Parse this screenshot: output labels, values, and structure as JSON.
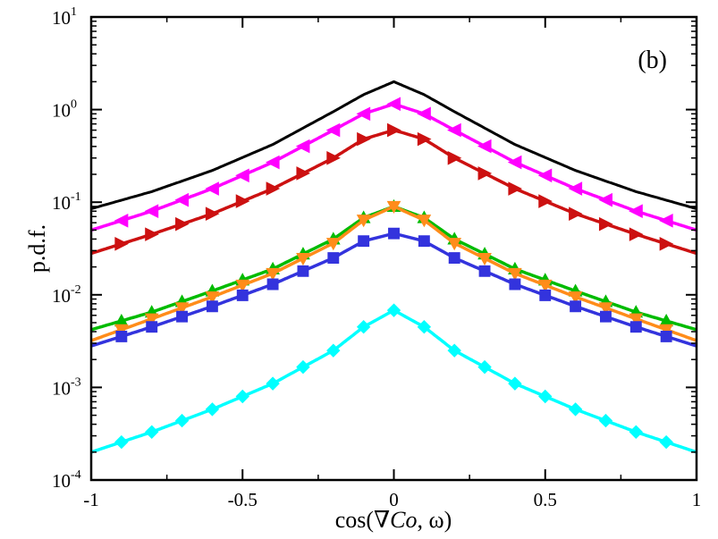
{
  "chart_data": {
    "type": "line",
    "panel_label": "(b)",
    "xlabel": "cos(∇Co, ω)",
    "xlabel_prefix": "cos(∇",
    "xlabel_italic": "Co",
    "xlabel_suffix": ", ω)",
    "ylabel": "p.d.f.",
    "xlim": [
      -1,
      1
    ],
    "ylim": [
      0.0001,
      10
    ],
    "yscale": "log",
    "x_ticks": [
      {
        "value": -1,
        "label": "-1"
      },
      {
        "value": -0.5,
        "label": "-0.5"
      },
      {
        "value": 0,
        "label": "0"
      },
      {
        "value": 0.5,
        "label": "0.5"
      },
      {
        "value": 1,
        "label": "1"
      }
    ],
    "y_ticks": [
      {
        "value": 0.0001,
        "base": "10",
        "exp": "-4"
      },
      {
        "value": 0.001,
        "base": "10",
        "exp": "-3"
      },
      {
        "value": 0.01,
        "base": "10",
        "exp": "-2"
      },
      {
        "value": 0.1,
        "base": "10",
        "exp": "-1"
      },
      {
        "value": 1,
        "base": "10",
        "exp": "0"
      },
      {
        "value": 10,
        "base": "10",
        "exp": "1"
      }
    ],
    "series": [
      {
        "name": "black",
        "color": "#000000",
        "marker": "none",
        "x": [
          -1,
          -0.8,
          -0.6,
          -0.4,
          -0.2,
          -0.1,
          0,
          0.1,
          0.2,
          0.4,
          0.6,
          0.8,
          1
        ],
        "y": [
          0.085,
          0.13,
          0.22,
          0.42,
          0.95,
          1.45,
          2.0,
          1.45,
          0.95,
          0.42,
          0.22,
          0.13,
          0.085
        ]
      },
      {
        "name": "magenta",
        "color": "#ff00ff",
        "marker": "triangle-left",
        "x": [
          -1,
          -0.8,
          -0.6,
          -0.4,
          -0.2,
          -0.1,
          0,
          0.1,
          0.2,
          0.4,
          0.6,
          0.8,
          1
        ],
        "y": [
          0.05,
          0.08,
          0.14,
          0.27,
          0.6,
          0.9,
          1.15,
          0.9,
          0.6,
          0.27,
          0.14,
          0.08,
          0.05
        ]
      },
      {
        "name": "red",
        "color": "#cc1111",
        "marker": "triangle-right",
        "x": [
          -1,
          -0.8,
          -0.6,
          -0.4,
          -0.2,
          -0.1,
          0,
          0.1,
          0.2,
          0.4,
          0.6,
          0.8,
          1
        ],
        "y": [
          0.028,
          0.045,
          0.075,
          0.14,
          0.3,
          0.48,
          0.6,
          0.48,
          0.3,
          0.14,
          0.075,
          0.045,
          0.028
        ]
      },
      {
        "name": "green",
        "color": "#00bb00",
        "marker": "triangle-up",
        "x": [
          -1,
          -0.8,
          -0.6,
          -0.4,
          -0.2,
          -0.1,
          0,
          0.1,
          0.2,
          0.4,
          0.6,
          0.8,
          1
        ],
        "y": [
          0.0042,
          0.0065,
          0.011,
          0.019,
          0.04,
          0.068,
          0.09,
          0.068,
          0.04,
          0.019,
          0.011,
          0.0065,
          0.0042
        ]
      },
      {
        "name": "orange",
        "color": "#ff8c1a",
        "marker": "triangle-down",
        "x": [
          -1,
          -0.8,
          -0.6,
          -0.4,
          -0.2,
          -0.1,
          0,
          0.1,
          0.2,
          0.4,
          0.6,
          0.8,
          1
        ],
        "y": [
          0.0032,
          0.0055,
          0.0095,
          0.017,
          0.036,
          0.064,
          0.09,
          0.064,
          0.036,
          0.017,
          0.0095,
          0.0055,
          0.0032
        ]
      },
      {
        "name": "blue",
        "color": "#3333dd",
        "marker": "square",
        "x": [
          -1,
          -0.8,
          -0.6,
          -0.4,
          -0.2,
          -0.1,
          0,
          0.1,
          0.2,
          0.4,
          0.6,
          0.8,
          1
        ],
        "y": [
          0.0028,
          0.0045,
          0.0075,
          0.013,
          0.025,
          0.038,
          0.046,
          0.038,
          0.025,
          0.013,
          0.0075,
          0.0045,
          0.0028
        ]
      },
      {
        "name": "cyan",
        "color": "#00ffff",
        "marker": "diamond",
        "x": [
          -1,
          -0.8,
          -0.6,
          -0.4,
          -0.2,
          -0.1,
          0,
          0.1,
          0.2,
          0.4,
          0.6,
          0.8,
          1
        ],
        "y": [
          0.0002,
          0.00033,
          0.00058,
          0.0011,
          0.0025,
          0.0045,
          0.0068,
          0.0045,
          0.0025,
          0.0011,
          0.00058,
          0.00033,
          0.0002
        ]
      }
    ]
  }
}
